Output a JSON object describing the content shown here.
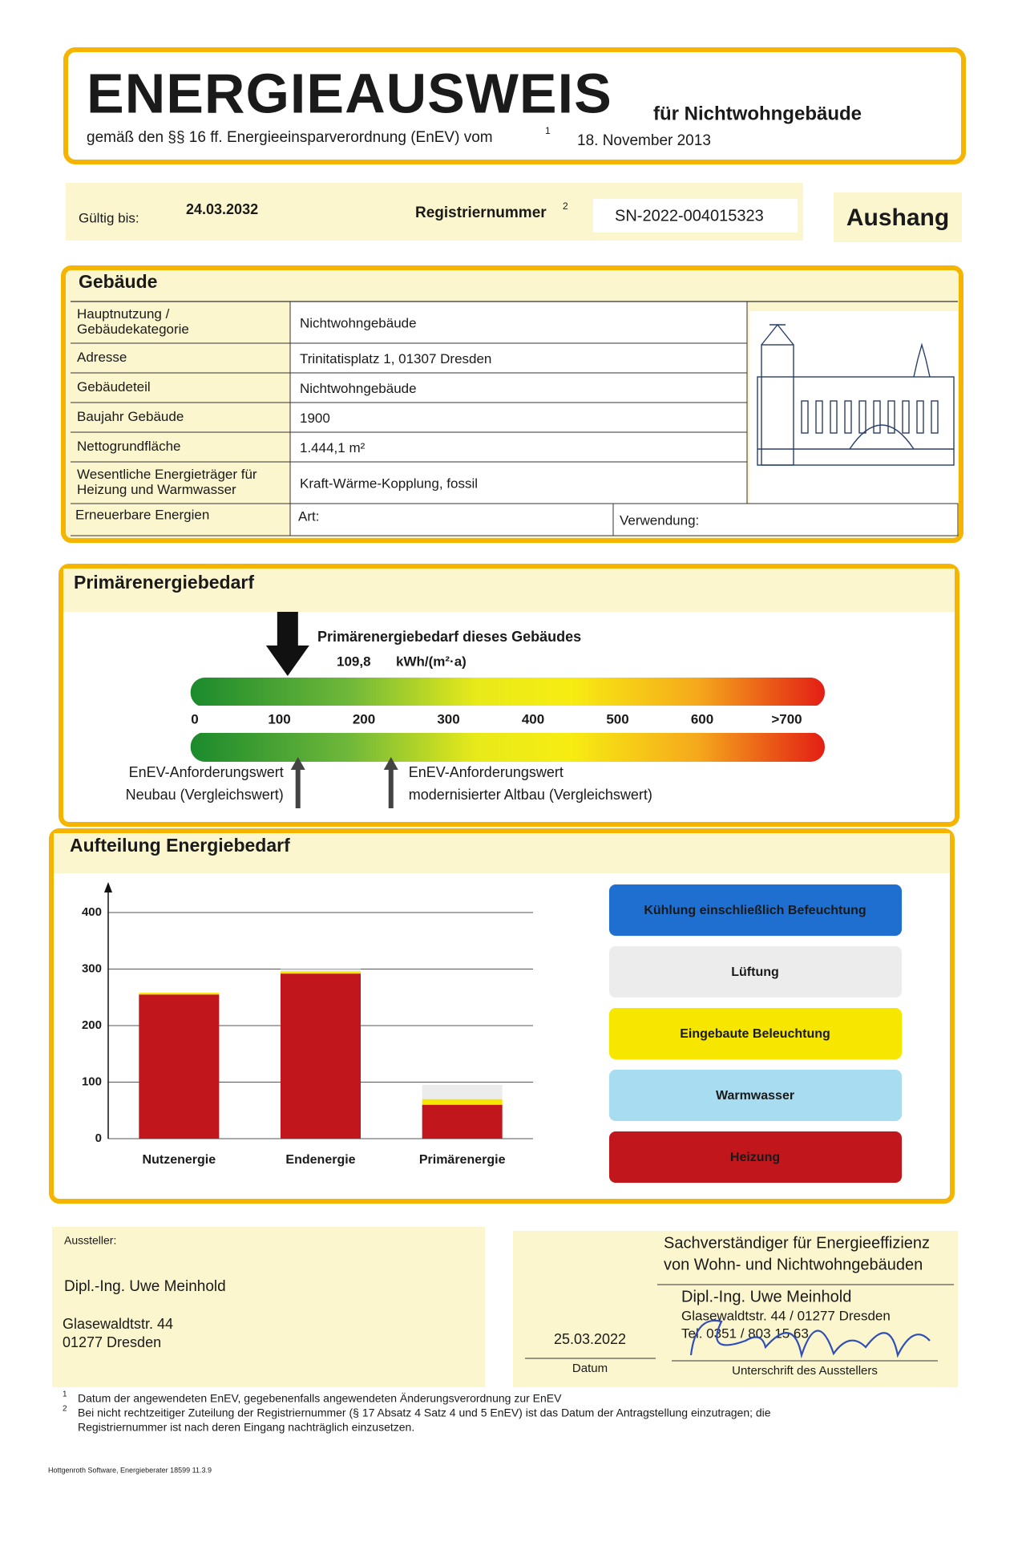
{
  "header": {
    "title": "ENERGIEAUSWEIS",
    "subtitle": "für Nichtwohngebäude",
    "basis": "gemäß den §§ 16 ff. Energieeinsparverordnung (EnEV) vom",
    "basis_note": "1",
    "date": "18. November 2013"
  },
  "validity": {
    "label": "Gültig bis:",
    "date": "24.03.2032",
    "registration_label": "Registriernummer",
    "registration_note": "2",
    "registration_number": "SN-2022-004015323",
    "display": "Aushang"
  },
  "building": {
    "title": "Gebäude",
    "rows": [
      {
        "label": [
          "Hauptnutzung /",
          "Gebäudekategorie"
        ],
        "value": "Nichtwohngebäude"
      },
      {
        "label": [
          "Adresse"
        ],
        "value": "Trinitatisplatz 1, 01307 Dresden"
      },
      {
        "label": [
          "Gebäudeteil"
        ],
        "value": "Nichtwohngebäude"
      },
      {
        "label": [
          "Baujahr Gebäude"
        ],
        "value": "1900"
      },
      {
        "label": [
          "Nettogrundfläche"
        ],
        "value": "1.444,1 m²"
      },
      {
        "label": [
          "Wesentliche Energieträger für",
          "Heizung und Warmwasser"
        ],
        "value": "Kraft-Wärme-Kopplung, fossil"
      }
    ],
    "renewable": {
      "label": "Erneuerbare Energien",
      "kind": "Art:",
      "use": "Verwendung:"
    }
  },
  "primary_energy": {
    "title": "Primärenergiebedarf",
    "building_label": "Primärenergiebedarf dieses Gebäudes",
    "value": 109.8,
    "value_label": "109,8",
    "unit": "kWh/(m²·a)",
    "xlim": [
      -5,
      745
    ],
    "xticks": [
      0,
      100,
      200,
      300,
      400,
      500,
      600,
      {
        "value": 700,
        "label": ">700"
      }
    ],
    "new_building": {
      "label": [
        "EnEV-Anforderungswert",
        "Neubau (Vergleichswert)"
      ],
      "value": 122
    },
    "renovated": {
      "label": [
        "EnEV-Anforderungswert",
        "modernisierter Altbau (Vergleichswert)"
      ],
      "value": 232
    }
  },
  "chart_data": {
    "type": "bar",
    "stacked": true,
    "title": "Aufteilung Energiebedarf",
    "categories": [
      "Nutzenergie",
      "Endenergie",
      "Primärenergie"
    ],
    "series": [
      {
        "name": "Heizung",
        "color": "#c0161c",
        "values": [
          255,
          292,
          60
        ]
      },
      {
        "name": "Warmwasser",
        "color": "#a8dcf0",
        "values": [
          0,
          0,
          0
        ]
      },
      {
        "name": "Eingebaute Beleuchtung",
        "color": "#f6e600",
        "values": [
          3,
          4,
          10
        ]
      },
      {
        "name": "Lüftung",
        "color": "#ececec",
        "values": [
          0,
          4,
          25
        ]
      },
      {
        "name": "Kühlung einschließlich Befeuchtung",
        "color": "#1f6fd0",
        "values": [
          0,
          0,
          0
        ]
      }
    ],
    "ylim": [
      0,
      400
    ],
    "yticks": [
      0,
      100,
      200,
      300,
      400
    ],
    "grid": true
  },
  "issuer": {
    "label": "Aussteller:",
    "name": "Dipl.-Ing. Uwe Meinhold",
    "street": "Glasewaldtstr. 44",
    "city": "01277 Dresden"
  },
  "signature": {
    "date": "25.03.2022",
    "date_label": "Datum",
    "stamp": [
      "Sachverständiger für Energieeffizienz",
      "von Wohn- und Nichtwohngebäuden",
      "Dipl.-Ing. Uwe Meinhold",
      "Glasewaldtstr. 44 / 01277 Dresden",
      "Tel. 0351 / 803 15 63"
    ],
    "signature_label": "Unterschrift des Ausstellers"
  },
  "footnotes": [
    {
      "mark": "1",
      "lines": [
        "Datum der angewendeten EnEV, gegebenenfalls angewendeten Änderungsverordnung zur EnEV"
      ]
    },
    {
      "mark": "2",
      "lines": [
        "Bei nicht rechtzeitiger Zuteilung der Registriernummer (§ 17 Absatz 4 Satz 4 und 5 EnEV) ist das Datum der Antragstellung einzutragen; die",
        "Registriernummer ist nach deren Eingang nachträglich einzusetzen."
      ]
    }
  ],
  "software": "Hottgenroth Software, Energieberater 18599 11.3.9"
}
